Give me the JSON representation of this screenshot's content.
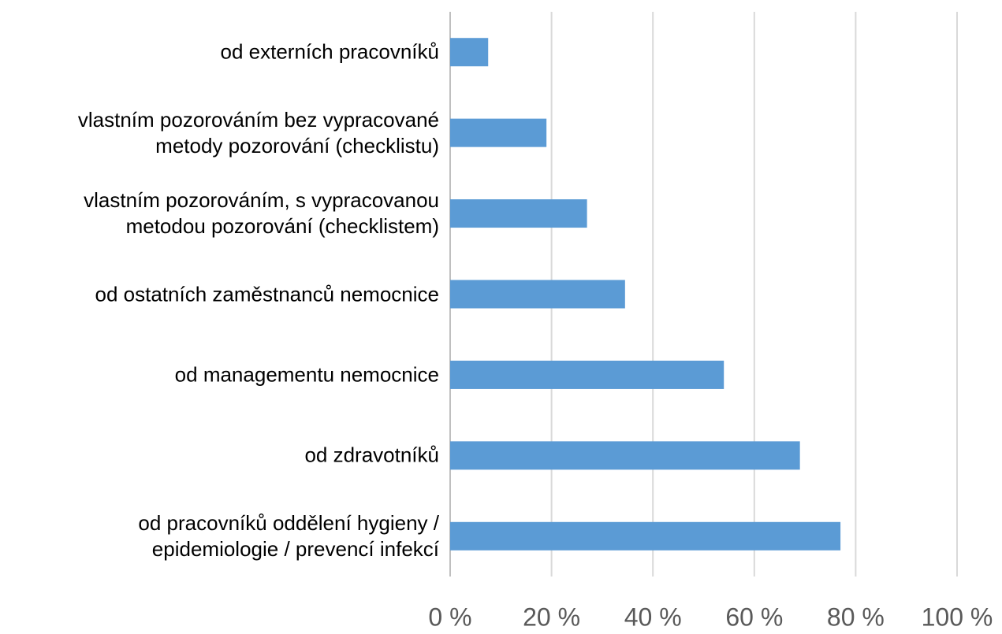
{
  "chart_data": {
    "type": "bar",
    "orientation": "horizontal",
    "categories": [
      "od externích pracovníků",
      "vlastním pozorováním bez vypracované\nmetody pozorování (checklistu)",
      "vlastním pozorováním, s vypracovanou\nmetodou pozorování (checklistem)",
      "od ostatních zaměstnanců nemocnice",
      "od managementu nemocnice",
      "od zdravotníků",
      "od pracovníků oddělení hygieny /\nepidemiologie / prevencí infekcí"
    ],
    "values": [
      7.5,
      19,
      27,
      34.5,
      54,
      69,
      77
    ],
    "color": "#5b9bd5",
    "xlim": [
      0,
      100
    ],
    "xticks": [
      {
        "value": 0,
        "label": "0 %"
      },
      {
        "value": 20,
        "label": "20 %"
      },
      {
        "value": 40,
        "label": "40 %"
      },
      {
        "value": 60,
        "label": "60 %"
      },
      {
        "value": 80,
        "label": "80 %"
      },
      {
        "value": 100,
        "label": "100 %"
      }
    ],
    "grid": true
  }
}
